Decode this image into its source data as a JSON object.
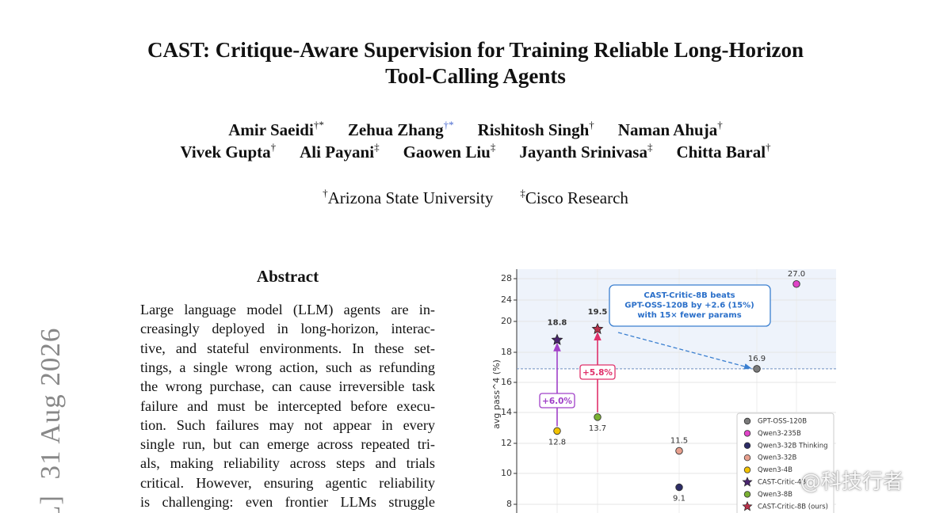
{
  "side_stamp": "L]  31 Aug 2026",
  "title": [
    "CAST: Critique-Aware Supervision for Training Reliable Long-Horizon",
    "Tool-Calling Agents"
  ],
  "authors": [
    [
      {
        "name": "Amir Saeidi",
        "mark": "†*"
      },
      {
        "name": "Zehua Zhang",
        "mark": "†*"
      },
      {
        "name": "Rishitosh Singh",
        "mark": "†"
      },
      {
        "name": "Naman Ahuja",
        "mark": "†"
      }
    ],
    [
      {
        "name": "Vivek Gupta",
        "mark": "†"
      },
      {
        "name": "Ali Payani",
        "mark": "‡"
      },
      {
        "name": "Gaowen Liu",
        "mark": "‡"
      },
      {
        "name": "Jayanth Srinivasa",
        "mark": "‡"
      },
      {
        "name": "Chitta Baral",
        "mark": "†"
      }
    ]
  ],
  "affiliations": [
    {
      "mark": "†",
      "name": "Arizona State University"
    },
    {
      "mark": "‡",
      "name": "Cisco Research"
    }
  ],
  "abstract": {
    "heading": "Abstract",
    "lines": [
      "Large language model (LLM) agents are in-",
      "creasingly deployed in long-horizon, interac-",
      "tive, and stateful environments.  In these set-",
      "tings, a single wrong action, such as refunding",
      "the wrong purchase, can cause irreversible task",
      "failure and must be intercepted before execu-",
      "tion.  Such failures may not appear in every",
      "single run, but can emerge across repeated tri-",
      "als, making reliability across steps and trials",
      "critical. However, ensuring agentic reliability",
      "is challenging:  even frontier LLMs struggle"
    ]
  },
  "watermark": "@科技行者",
  "chart_data": {
    "type": "scatter",
    "y_label": "avg pass^4 (%)",
    "categories": [
      null,
      null,
      null,
      null,
      null
    ],
    "ylim": [
      7.4,
      29.8
    ],
    "yticks": [
      8,
      10,
      12,
      14,
      16,
      18,
      20,
      24,
      28
    ],
    "grid": true,
    "reference_line": 16.9,
    "series": [
      {
        "name": "GPT-OSS-120B",
        "color": "#7a7a7a",
        "marker": "circle",
        "values": [
          null,
          null,
          null,
          16.9,
          null
        ]
      },
      {
        "name": "Qwen3-235B",
        "color": "#e044c8",
        "marker": "circle",
        "values": [
          null,
          null,
          null,
          null,
          27.0
        ],
        "value_labels": [
          null,
          null,
          null,
          null,
          "27.0"
        ]
      },
      {
        "name": "Qwen3-32B Thinking",
        "color": "#2c2c66",
        "marker": "circle",
        "values": [
          null,
          null,
          9.1,
          null,
          null
        ]
      },
      {
        "name": "Qwen3-32B",
        "color": "#e8a08e",
        "marker": "circle",
        "values": [
          null,
          null,
          11.5,
          null,
          null
        ]
      },
      {
        "name": "Qwen3-4B",
        "color": "#f2c200",
        "marker": "circle",
        "values": [
          12.8,
          null,
          null,
          null,
          null
        ]
      },
      {
        "name": "CAST-Critic-4B",
        "color": "#4a2470",
        "marker": "star",
        "values": [
          18.8,
          null,
          null,
          null,
          null
        ]
      },
      {
        "name": "Qwen3-8B",
        "color": "#7ab032",
        "marker": "circle",
        "values": [
          null,
          13.7,
          null,
          null,
          null
        ]
      },
      {
        "name": "CAST-Critic-8B (ours)",
        "color": "#b8304a",
        "marker": "star",
        "values": [
          null,
          19.5,
          null,
          null,
          null
        ]
      }
    ],
    "gain_labels": [
      {
        "text": "+6.0%",
        "color": "#a040c8"
      },
      {
        "text": "+5.8%",
        "color": "#e0306a"
      }
    ],
    "callout": [
      "CAST-Critic-8B beats",
      "GPT-OSS-120B by +2.6  (15%)",
      "with 15× fewer params"
    ]
  }
}
